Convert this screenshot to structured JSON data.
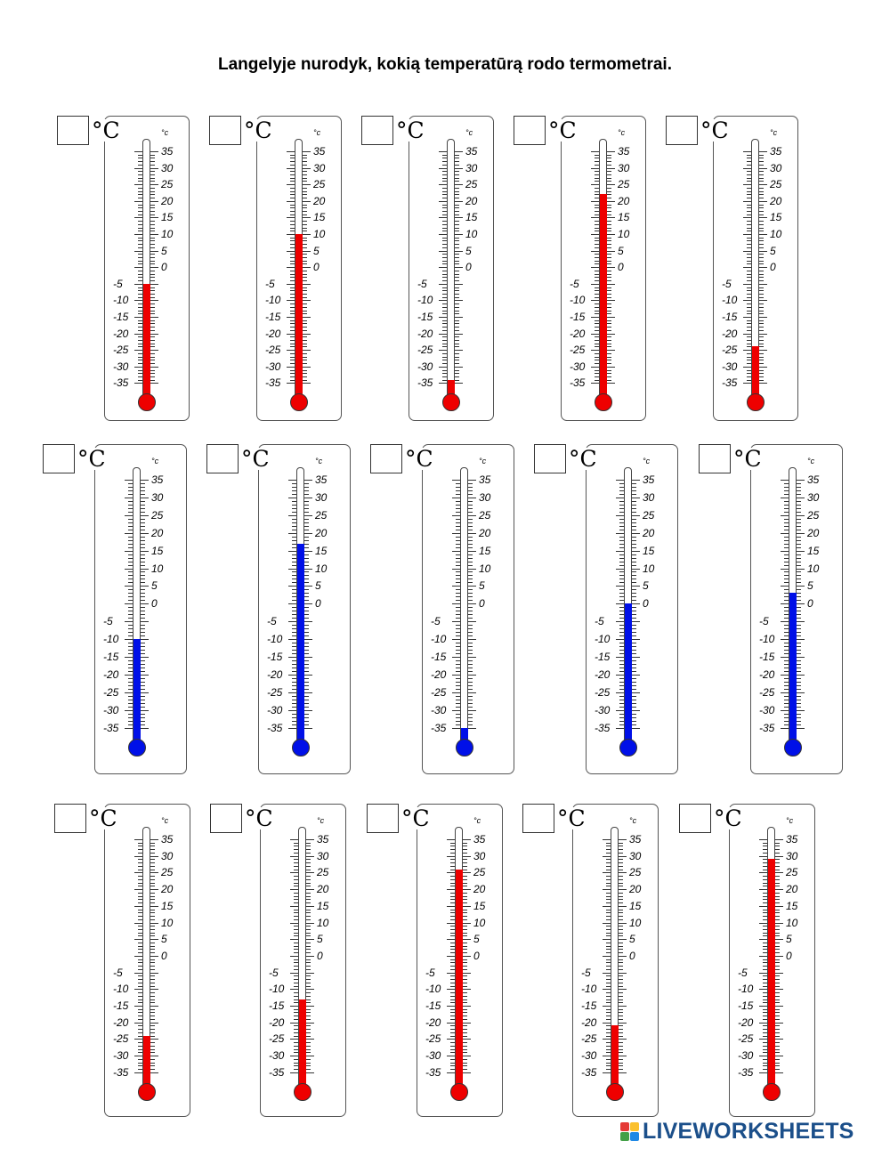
{
  "title": "Langelyje nurodyk, kokią temperatūrą rodo termometrai.",
  "unit": "°C",
  "scale_unit": "°c",
  "scale_labels": [
    "35",
    "30",
    "25",
    "20",
    "15",
    "10",
    "5",
    "0",
    "-5",
    "-10",
    "-15",
    "-20",
    "-25",
    "-30",
    "-35"
  ],
  "colors": {
    "red": "#ee0000",
    "blue": "#0010e8"
  },
  "rows": [
    {
      "color": "red",
      "readings": [
        -5,
        10,
        -34,
        22,
        -24
      ]
    },
    {
      "color": "blue",
      "readings": [
        -10,
        17,
        -35,
        0,
        3
      ]
    },
    {
      "color": "red",
      "readings": [
        -24,
        -13,
        26,
        -21,
        29
      ]
    }
  ],
  "footer": {
    "brand": "LIVEWORKSHEETS"
  }
}
